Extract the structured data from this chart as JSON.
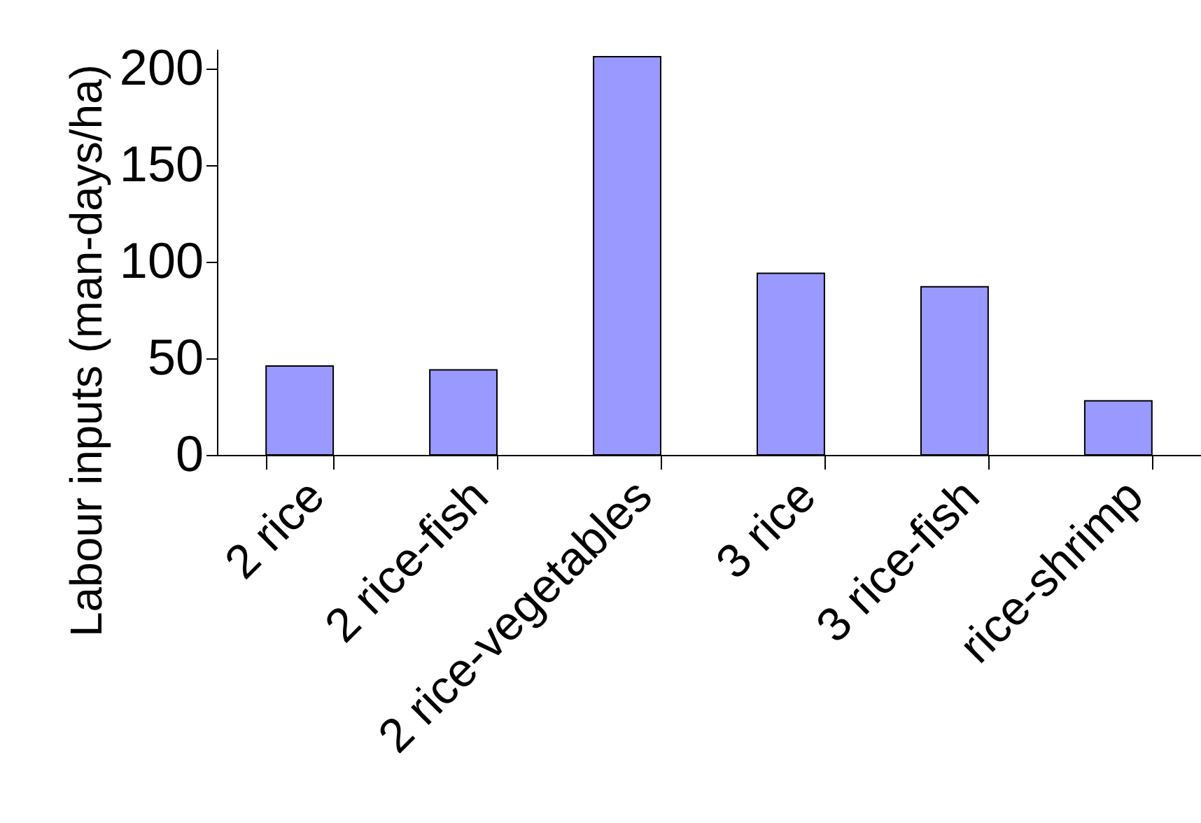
{
  "chart_data": {
    "type": "bar",
    "ylabel": "Labour inputs (man-days/ha)",
    "categories": [
      "2 rice",
      "2 rice-fish",
      "2 rice-vegetables",
      "3 rice",
      "3 rice-fish",
      "rice-shrimp"
    ],
    "values": [
      46,
      44,
      206,
      94,
      87,
      28
    ],
    "color": "#9999ff",
    "ylim": [
      0,
      210
    ],
    "yticks": [
      0,
      50,
      100,
      150,
      200
    ],
    "grid": false
  }
}
